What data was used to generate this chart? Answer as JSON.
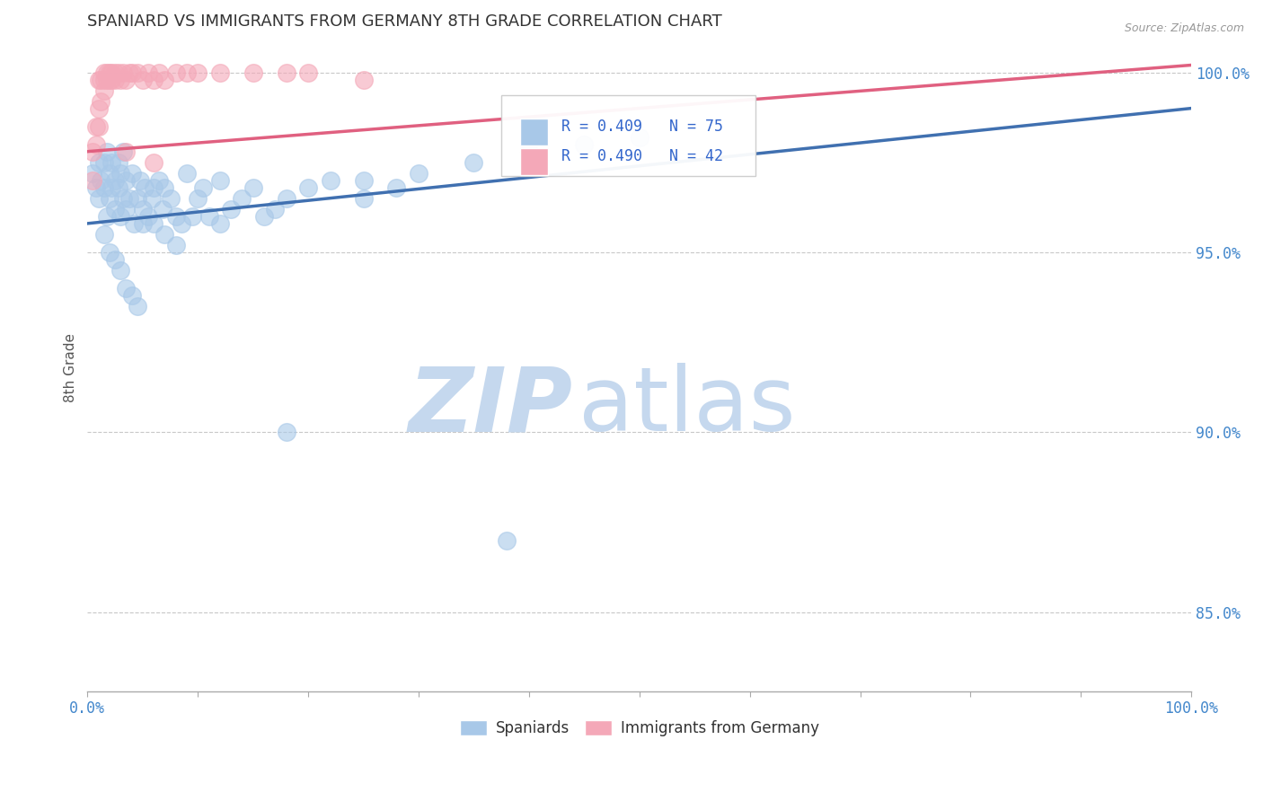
{
  "title": "SPANIARD VS IMMIGRANTS FROM GERMANY 8TH GRADE CORRELATION CHART",
  "source_text": "Source: ZipAtlas.com",
  "ylabel": "8th Grade",
  "xlim": [
    0.0,
    1.0
  ],
  "ylim": [
    0.828,
    1.008
  ],
  "yticks": [
    0.85,
    0.9,
    0.95,
    1.0
  ],
  "ytick_labels": [
    "85.0%",
    "90.0%",
    "95.0%",
    "100.0%"
  ],
  "xticks": [
    0.0,
    0.1,
    0.2,
    0.3,
    0.4,
    0.5,
    0.6,
    0.7,
    0.8,
    0.9,
    1.0
  ],
  "xtick_labels": [
    "0.0%",
    "",
    "",
    "",
    "",
    "",
    "",
    "",
    "",
    "",
    "100.0%"
  ],
  "blue_R": 0.409,
  "blue_N": 75,
  "pink_R": 0.49,
  "pink_N": 42,
  "blue_color": "#A8C8E8",
  "pink_color": "#F4A8B8",
  "blue_line_color": "#4070B0",
  "pink_line_color": "#E06080",
  "legend_label_blue": "Spaniards",
  "legend_label_pink": "Immigrants from Germany",
  "blue_scatter_x": [
    0.005,
    0.008,
    0.01,
    0.01,
    0.012,
    0.015,
    0.015,
    0.018,
    0.018,
    0.02,
    0.02,
    0.022,
    0.022,
    0.025,
    0.025,
    0.028,
    0.028,
    0.03,
    0.03,
    0.032,
    0.032,
    0.035,
    0.035,
    0.038,
    0.04,
    0.042,
    0.045,
    0.048,
    0.05,
    0.052,
    0.055,
    0.058,
    0.06,
    0.065,
    0.068,
    0.07,
    0.075,
    0.08,
    0.085,
    0.09,
    0.095,
    0.1,
    0.105,
    0.11,
    0.12,
    0.13,
    0.14,
    0.15,
    0.16,
    0.17,
    0.18,
    0.2,
    0.22,
    0.25,
    0.28,
    0.3,
    0.35,
    0.4,
    0.45,
    0.5,
    0.015,
    0.02,
    0.025,
    0.03,
    0.035,
    0.04,
    0.045,
    0.05,
    0.06,
    0.07,
    0.08,
    0.12,
    0.18,
    0.25,
    0.38
  ],
  "blue_scatter_y": [
    0.972,
    0.968,
    0.975,
    0.965,
    0.97,
    0.975,
    0.968,
    0.978,
    0.96,
    0.972,
    0.965,
    0.975,
    0.968,
    0.97,
    0.962,
    0.968,
    0.975,
    0.972,
    0.96,
    0.965,
    0.978,
    0.962,
    0.97,
    0.965,
    0.972,
    0.958,
    0.965,
    0.97,
    0.962,
    0.968,
    0.96,
    0.965,
    0.958,
    0.97,
    0.962,
    0.968,
    0.965,
    0.96,
    0.958,
    0.972,
    0.96,
    0.965,
    0.968,
    0.96,
    0.958,
    0.962,
    0.965,
    0.968,
    0.96,
    0.962,
    0.965,
    0.968,
    0.97,
    0.965,
    0.968,
    0.972,
    0.975,
    0.978,
    0.98,
    0.982,
    0.955,
    0.95,
    0.948,
    0.945,
    0.94,
    0.938,
    0.935,
    0.958,
    0.968,
    0.955,
    0.952,
    0.97,
    0.9,
    0.97,
    0.87
  ],
  "pink_scatter_x": [
    0.005,
    0.005,
    0.008,
    0.008,
    0.01,
    0.01,
    0.01,
    0.012,
    0.012,
    0.015,
    0.015,
    0.015,
    0.018,
    0.018,
    0.02,
    0.02,
    0.022,
    0.022,
    0.025,
    0.025,
    0.028,
    0.03,
    0.032,
    0.035,
    0.038,
    0.04,
    0.045,
    0.05,
    0.055,
    0.06,
    0.065,
    0.07,
    0.08,
    0.09,
    0.1,
    0.12,
    0.15,
    0.18,
    0.2,
    0.25,
    0.035,
    0.06
  ],
  "pink_scatter_y": [
    0.97,
    0.978,
    0.98,
    0.985,
    0.985,
    0.99,
    0.998,
    0.992,
    0.998,
    0.995,
    1.0,
    0.998,
    0.998,
    1.0,
    1.0,
    0.998,
    0.998,
    1.0,
    1.0,
    0.998,
    1.0,
    0.998,
    1.0,
    0.998,
    1.0,
    1.0,
    1.0,
    0.998,
    1.0,
    0.998,
    1.0,
    0.998,
    1.0,
    1.0,
    1.0,
    1.0,
    1.0,
    1.0,
    1.0,
    0.998,
    0.978,
    0.975
  ],
  "blue_trendline_x": [
    0.0,
    1.0
  ],
  "blue_trendline_y_start": 0.958,
  "blue_trendline_y_end": 0.99,
  "pink_trendline_x": [
    0.0,
    1.0
  ],
  "pink_trendline_y_start": 0.978,
  "pink_trendline_y_end": 1.002,
  "grid_color": "#C8C8C8",
  "background_color": "#FFFFFF",
  "watermark_zip": "ZIP",
  "watermark_atlas": "atlas",
  "watermark_color_zip": "#C5D8EE",
  "watermark_color_atlas": "#C5D8EE"
}
